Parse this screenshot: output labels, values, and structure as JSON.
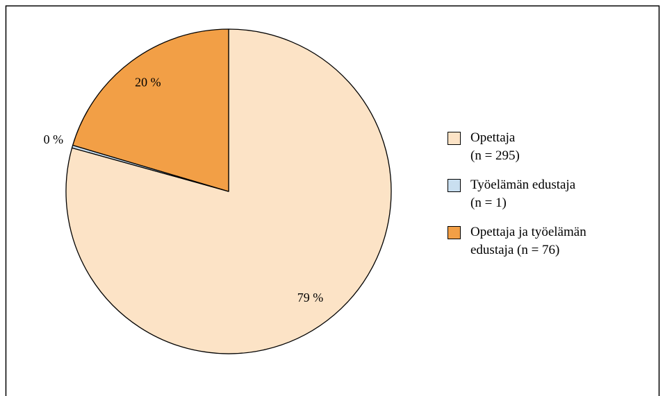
{
  "chart_data": {
    "type": "pie",
    "series": [
      {
        "name": "Opettaja\n(n = 295)",
        "color": "#fce3c6",
        "values": [
          79.3
        ],
        "value_labels": [
          "79 %"
        ]
      },
      {
        "name": "Työelämän edustaja\n(n = 1)",
        "color": "#c9dff0",
        "values": [
          0.27
        ],
        "value_labels": [
          "0 %"
        ]
      },
      {
        "name": "Opettaja ja työelämän\nedustaja (n = 76)",
        "color": "#f29f46",
        "values": [
          20.4
        ],
        "value_labels": [
          "20 %"
        ]
      }
    ],
    "legend": "right"
  }
}
